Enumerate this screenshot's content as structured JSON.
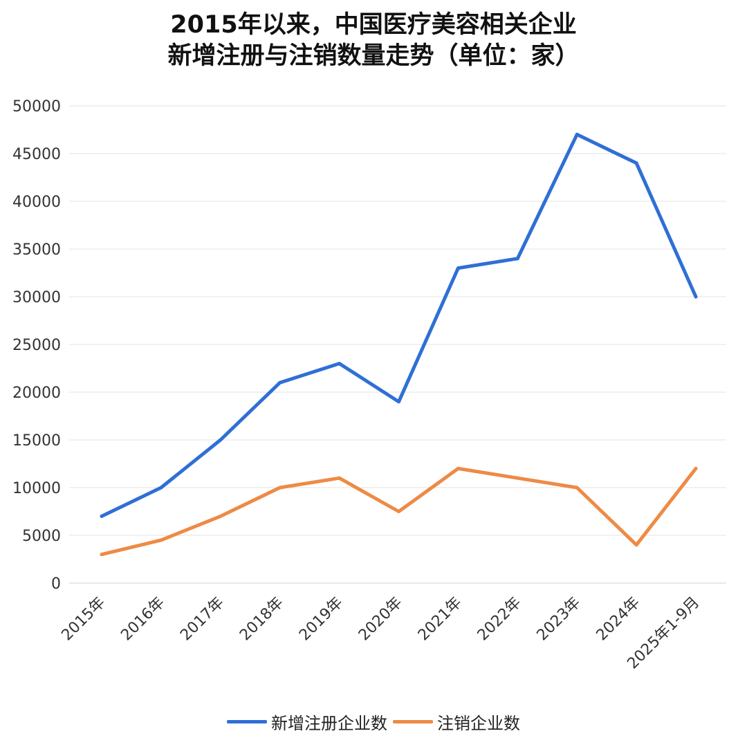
{
  "title": {
    "line1": "2015年以来，中国医疗美容相关企业",
    "line2": "新增注册与注销数量走势（单位：家）"
  },
  "chart_data": {
    "type": "line",
    "title": "2015年以来，中国医疗美容相关企业新增注册与注销数量走势（单位：家）",
    "xlabel": "",
    "ylabel": "",
    "categories": [
      "2015年",
      "2016年",
      "2017年",
      "2018年",
      "2019年",
      "2020年",
      "2021年",
      "2022年",
      "2023年",
      "2024年",
      "2025年1-9月"
    ],
    "ylim": [
      0,
      50000
    ],
    "yticks": [
      0,
      5000,
      10000,
      15000,
      20000,
      25000,
      30000,
      35000,
      40000,
      45000,
      50000
    ],
    "grid": true,
    "legend_position": "bottom",
    "series": [
      {
        "name": "新增注册企业数",
        "color": "#2f6fd6",
        "values": [
          7000,
          10000,
          15000,
          21000,
          23000,
          19000,
          33000,
          34000,
          47000,
          44000,
          30000
        ]
      },
      {
        "name": "注销企业数",
        "color": "#ee8a45",
        "values": [
          3000,
          4500,
          7000,
          10000,
          11000,
          7500,
          12000,
          11000,
          10000,
          4000,
          12000
        ]
      }
    ]
  }
}
